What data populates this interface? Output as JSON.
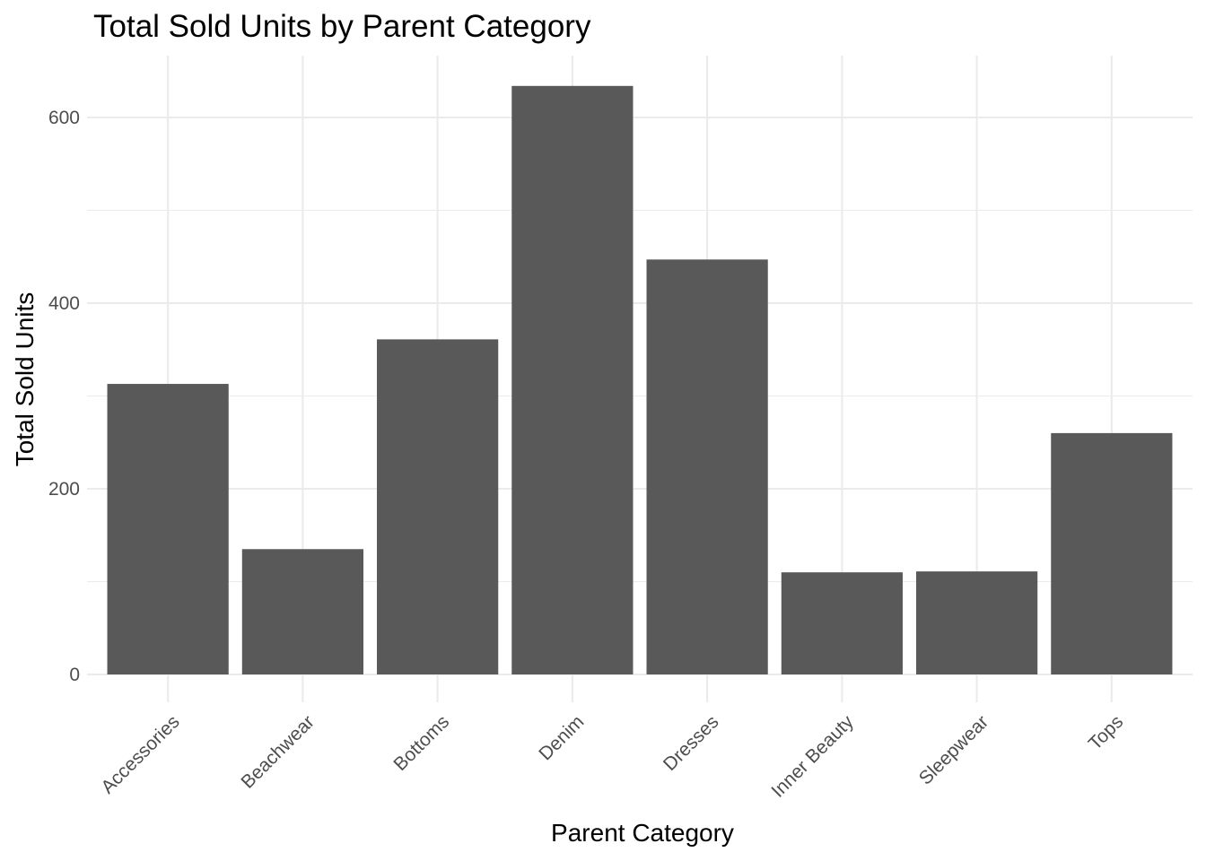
{
  "chart_data": {
    "type": "bar",
    "title": "Total Sold Units by Parent Category",
    "xlabel": "Parent Category",
    "ylabel": "Total Sold Units",
    "categories": [
      "Accessories",
      "Beachwear",
      "Bottoms",
      "Denim",
      "Dresses",
      "Inner Beauty",
      "Sleepwear",
      "Tops"
    ],
    "values": [
      313,
      135,
      361,
      634,
      447,
      110,
      111,
      260
    ],
    "ylim": [
      0,
      665
    ],
    "yticks": [
      0,
      200,
      400,
      600
    ],
    "grid": true,
    "bar_color": "#595959",
    "grid_color": "#ebebeb"
  }
}
